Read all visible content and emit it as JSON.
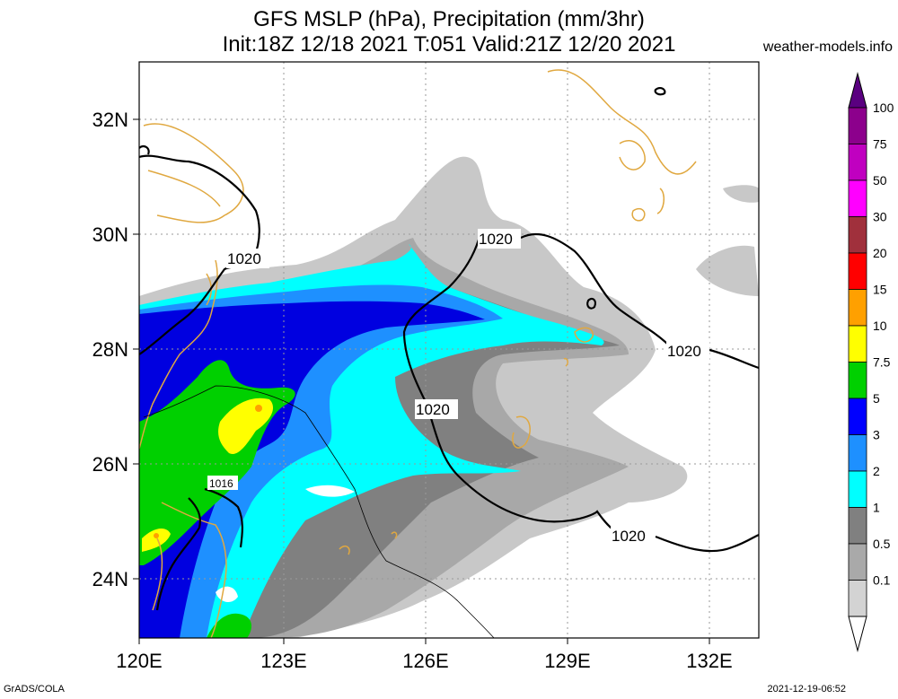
{
  "header": {
    "title_line1": "GFS MSLP (hPa), Precipitation (mm/3hr)",
    "title_line2": "Init:18Z 12/18 2021 T:051 Valid:21Z 12/20 2021",
    "credit": "weather-models.info"
  },
  "footer": {
    "left": "GrADS/COLA",
    "right": "2021-12-19-06:52"
  },
  "axes": {
    "lat_ticks": [
      "32N",
      "30N",
      "28N",
      "26N",
      "24N"
    ],
    "lon_ticks": [
      "120E",
      "123E",
      "126E",
      "129E",
      "132E"
    ]
  },
  "isobars": {
    "label_1020_a": "1020",
    "label_1020_b": "1020",
    "label_1020_c": "1020",
    "label_1020_d": "1020",
    "label_1020_e": "1020",
    "label_1016": "1016"
  },
  "colorbar": {
    "levels": [
      "100",
      "75",
      "50",
      "30",
      "20",
      "15",
      "10",
      "7.5",
      "5",
      "3",
      "2",
      "1",
      "0.5",
      "0.1"
    ],
    "colors": [
      "#8c008c",
      "#c000c0",
      "#ff00ff",
      "#a0303c",
      "#ff0000",
      "#ffa000",
      "#ffff00",
      "#00d000",
      "#0000ff",
      "#1e90ff",
      "#00ffff",
      "#808080",
      "#a9a9a9",
      "#d3d3d3"
    ],
    "top_color": "#5a0080"
  },
  "colors": {
    "coastline": "#e0a840",
    "isobar": "#000000",
    "grid": "#999999"
  }
}
